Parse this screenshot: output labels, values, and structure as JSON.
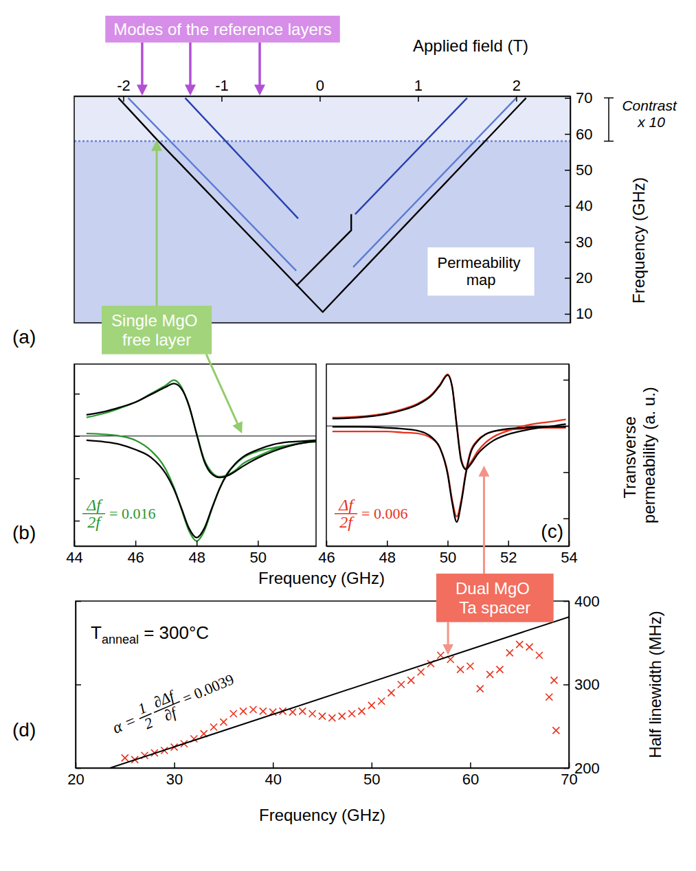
{
  "chart_data": [
    {
      "type": "line",
      "label": "(a)",
      "xlabel": "Applied field (T)",
      "ylabel": "Frequency (GHz)",
      "xlim": [
        -2.5,
        2.55
      ],
      "xticks": [
        -2,
        -1,
        0,
        1,
        2
      ],
      "ylim": [
        7.5,
        70.5
      ],
      "yticks": [
        10,
        20,
        30,
        40,
        50,
        60,
        70
      ],
      "contrast_band": [
        58,
        70
      ],
      "series": [
        {
          "color": "#000000",
          "x": [
            -2.05,
            -1.66,
            0.03,
            2.1
          ],
          "values": [
            70,
            58.5,
            10.5,
            70
          ]
        },
        {
          "color": "#000000",
          "x": [
            -0.24,
            0.32,
            0.32
          ],
          "values": [
            17.8,
            33.2,
            37.7
          ]
        },
        {
          "color": "#2741b0",
          "x": [
            -1.37,
            -0.22
          ],
          "values": [
            70,
            36.5
          ]
        },
        {
          "color": "#2741b0",
          "x": [
            0.36,
            1.5
          ],
          "values": [
            37.7,
            70
          ]
        },
        {
          "color": "#5b7bd5",
          "x": [
            0.34,
            2
          ],
          "values": [
            23,
            70
          ]
        },
        {
          "color": "#5b7bd5",
          "x": [
            -0.24,
            -1.95
          ],
          "values": [
            22,
            70
          ]
        }
      ],
      "annotations": [
        {
          "text": "Modes of the reference layers"
        },
        {
          "text": "Contrast x 10"
        },
        {
          "text": "Permeability map"
        },
        {
          "text": "Single MgO free layer"
        }
      ]
    },
    {
      "type": "line",
      "label": "(b)",
      "xlabel": "Frequency (GHz)",
      "xlim": [
        44,
        51.9
      ],
      "xticks": [
        44,
        46,
        48,
        50
      ],
      "ylim": [
        -1.3,
        0.85
      ],
      "yticks": [
        -1,
        -0.5,
        0,
        0.5
      ],
      "tick_labels": "x",
      "hline": 0,
      "x": [
        44.4,
        45,
        45.5,
        46,
        46.5,
        47,
        47.25,
        47.5,
        47.75,
        48,
        48.25,
        48.5,
        48.75,
        49,
        49.25,
        49.5,
        50,
        50.5,
        51,
        51.5,
        51.9
      ],
      "series": [
        {
          "color": "#2a9630",
          "values": [
            0.22,
            0.27,
            0.33,
            0.4,
            0.5,
            0.6,
            0.66,
            0.58,
            0.35,
            0.03,
            -0.28,
            -0.43,
            -0.48,
            -0.46,
            -0.41,
            -0.33,
            -0.24,
            -0.16,
            -0.11,
            -0.08,
            -0.07
          ]
        },
        {
          "color": "#2a9630",
          "values": [
            0.03,
            0.02,
            0,
            -0.05,
            -0.17,
            -0.4,
            -0.6,
            -0.86,
            -1.12,
            -1.24,
            -1.12,
            -0.86,
            -0.62,
            -0.44,
            -0.34,
            -0.26,
            -0.18,
            -0.14,
            -0.11,
            -0.08,
            -0.06
          ]
        },
        {
          "color": "#000000",
          "values": [
            0.25,
            0.29,
            0.34,
            0.4,
            0.49,
            0.58,
            0.62,
            0.56,
            0.36,
            0.02,
            -0.3,
            -0.45,
            -0.49,
            -0.47,
            -0.42,
            -0.36,
            -0.26,
            -0.18,
            -0.12,
            -0.08,
            -0.06
          ]
        },
        {
          "color": "#000000",
          "values": [
            -0.05,
            -0.07,
            -0.1,
            -0.16,
            -0.25,
            -0.45,
            -0.62,
            -0.85,
            -1.09,
            -1.2,
            -1.09,
            -0.85,
            -0.62,
            -0.45,
            -0.33,
            -0.25,
            -0.16,
            -0.1,
            -0.07,
            -0.06,
            -0.05
          ]
        }
      ],
      "annotations": [
        {
          "numerator": "Δf",
          "denominator": "2f",
          "text": "= 0.016"
        }
      ]
    },
    {
      "type": "line",
      "label": "(c)",
      "ylabel": "Transverse permeability (a. u.)",
      "xlim": [
        46,
        54
      ],
      "xticks": [
        46,
        48,
        50,
        52,
        54
      ],
      "ylim": [
        -1.3,
        0.67
      ],
      "yticks": [
        -1,
        -0.5,
        0,
        0.5
      ],
      "tick_labels": "x",
      "hline": 0,
      "x": [
        46.2,
        47,
        48,
        48.5,
        49,
        49.5,
        49.75,
        50,
        50.15,
        50.3,
        50.45,
        50.6,
        50.75,
        51,
        51.25,
        51.5,
        52,
        52.5,
        53,
        53.5,
        53.9
      ],
      "series": [
        {
          "color": "#e8321e",
          "values": [
            0.09,
            0.1,
            0.14,
            0.18,
            0.24,
            0.35,
            0.45,
            0.56,
            0.43,
            0.02,
            -0.36,
            -0.46,
            -0.4,
            -0.27,
            -0.18,
            -0.12,
            -0.05,
            0,
            0.03,
            0.05,
            0.07
          ]
        },
        {
          "color": "#e8321e",
          "values": [
            -0.06,
            -0.06,
            -0.06,
            -0.07,
            -0.08,
            -0.14,
            -0.24,
            -0.5,
            -0.8,
            -0.98,
            -0.8,
            -0.5,
            -0.28,
            -0.15,
            -0.09,
            -0.06,
            -0.04,
            -0.03,
            -0.02,
            -0.02,
            -0.02
          ]
        },
        {
          "color": "#000000",
          "values": [
            0.08,
            0.09,
            0.13,
            0.17,
            0.23,
            0.34,
            0.44,
            0.55,
            0.42,
            0,
            -0.38,
            -0.47,
            -0.42,
            -0.3,
            -0.22,
            -0.16,
            -0.09,
            -0.05,
            -0.02,
            0,
            0.02
          ]
        },
        {
          "color": "#000000",
          "values": [
            -0.01,
            -0.01,
            -0.02,
            -0.03,
            -0.05,
            -0.13,
            -0.24,
            -0.52,
            -0.83,
            -1.04,
            -0.83,
            -0.52,
            -0.3,
            -0.16,
            -0.09,
            -0.06,
            -0.03,
            -0.02,
            -0.01,
            -0.01,
            -0.01
          ]
        }
      ],
      "annotations": [
        {
          "numerator": "Δf",
          "denominator": "2f",
          "text": "= 0.006"
        }
      ]
    },
    {
      "type": "scatter",
      "label": "(d)",
      "xlabel": "Frequency (GHz)",
      "ylabel": "Half linewidth (MHz)",
      "xlim": [
        20,
        70
      ],
      "xticks": [
        20,
        30,
        40,
        50,
        60,
        70
      ],
      "ylim": [
        200,
        400
      ],
      "yticks": [
        200,
        300,
        400
      ],
      "series": [
        {
          "type": "scatter",
          "marker": "x",
          "color": "#e8321e",
          "x": [
            25,
            26,
            27,
            28,
            29,
            30,
            31,
            32,
            33,
            34,
            35,
            36,
            37,
            38,
            39,
            40,
            41,
            42,
            43,
            44,
            45,
            46,
            47,
            48,
            49,
            50,
            51,
            52,
            53,
            54,
            55,
            56,
            57,
            58,
            59,
            60,
            61,
            62,
            63,
            64,
            65,
            66,
            67,
            68,
            68.5,
            68.7
          ],
          "values": [
            212,
            210,
            215,
            218,
            221,
            225,
            229,
            235,
            241,
            249,
            255,
            265,
            268,
            270,
            268,
            267,
            268,
            267,
            268,
            265,
            262,
            260,
            262,
            265,
            268,
            275,
            280,
            290,
            300,
            305,
            315,
            325,
            335,
            330,
            318,
            322,
            295,
            312,
            318,
            338,
            348,
            345,
            335,
            285,
            305,
            245
          ]
        },
        {
          "type": "line",
          "color": "#000000",
          "x": [
            23.5,
            70
          ],
          "values": [
            200,
            381
          ]
        }
      ],
      "annotations": [
        {
          "text": "T",
          "subscript": "anneal",
          "suffix": " = 300°C"
        },
        {
          "text": "α =",
          "fractions": [
            {
              "numerator": "1",
              "denominator": "2"
            },
            {
              "numerator": "∂Δf",
              "denominator": "∂f"
            }
          ],
          "suffix": "= 0.0039"
        },
        {
          "text": "Dual MgO Ta spacer"
        }
      ]
    }
  ]
}
